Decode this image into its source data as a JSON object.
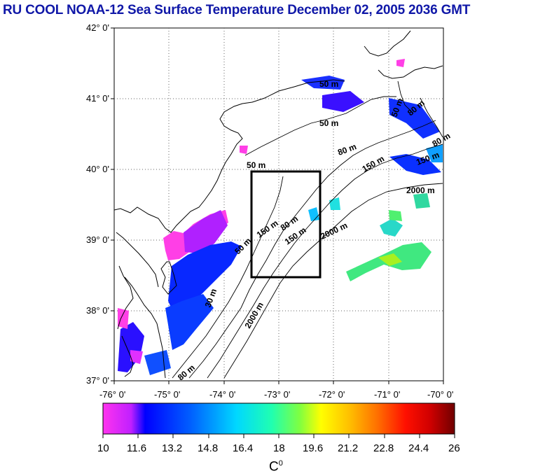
{
  "title": "RU COOL  NOAA-12 Sea Surface Temperature December 02, 2005 2036 GMT",
  "lat_labels": [
    "42° 0'",
    "41° 0'",
    "40° 0'",
    "39° 0'",
    "38° 0'",
    "37° 0'"
  ],
  "lon_labels": [
    "-76° 0'",
    "-75° 0'",
    "-74° 0'",
    "-73° 0'",
    "-72° 0'",
    "-71° 0'",
    "-70° 0'"
  ],
  "lat_range": [
    37,
    42
  ],
  "lon_range": [
    -76,
    -70
  ],
  "study_box": {
    "lon_min": -73.5,
    "lon_max": -72.25,
    "lat_min": 38.5,
    "lat_max": 40.0
  },
  "isobath_labels": [
    "50 m",
    "50 m",
    "50 m",
    "80 m",
    "150 m",
    "2000 m",
    "50 m",
    "80 m",
    "150 m",
    "2000 m",
    "50 m",
    "150 m",
    "2000 m",
    "30 m",
    "80 m",
    "80 m",
    "150 m",
    "80 m"
  ],
  "colorbar": {
    "ticks": [
      "10",
      "11.6",
      "13.2",
      "14.8",
      "16.4",
      "18",
      "19.6",
      "21.2",
      "22.8",
      "24.4",
      "26"
    ],
    "unit": "C",
    "unit_sup": "0",
    "colors": [
      "#ff33ee",
      "#c020ff",
      "#0000ff",
      "#0040ff",
      "#0090ff",
      "#00d8ff",
      "#00ffd0",
      "#30ff80",
      "#a0ff20",
      "#ffff00",
      "#ffc000",
      "#ff7000",
      "#ff2000",
      "#e00000",
      "#a00000",
      "#700000"
    ]
  }
}
